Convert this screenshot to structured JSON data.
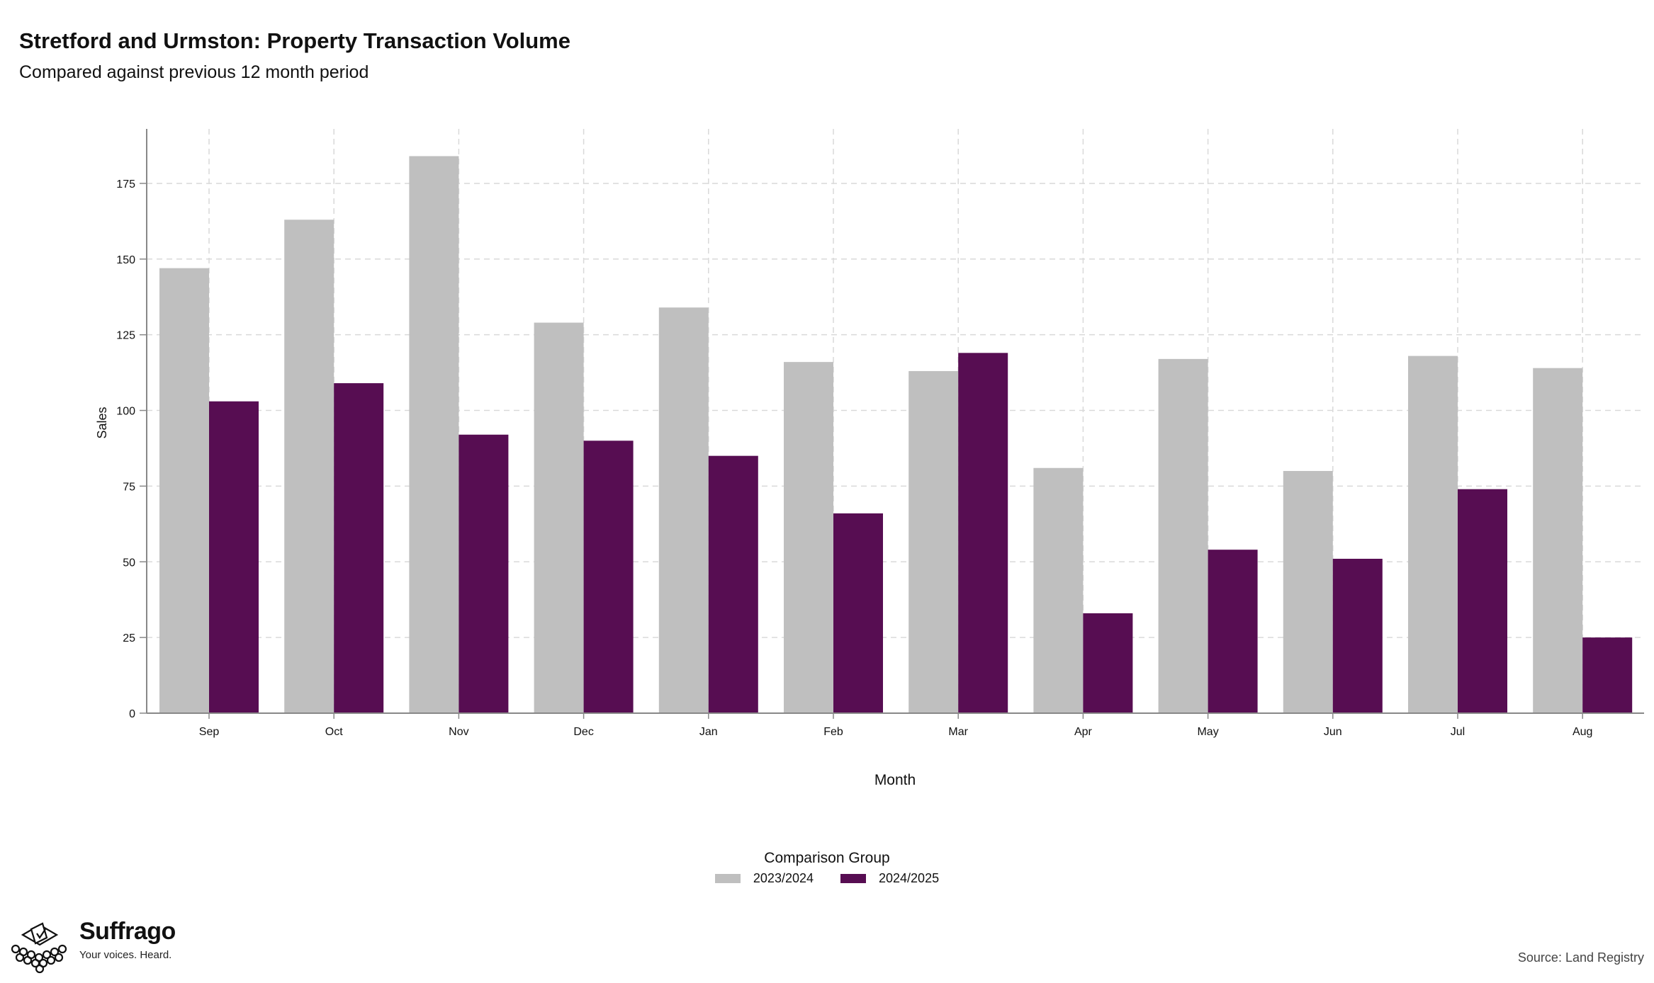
{
  "header": {
    "title": "Stretford and Urmston: Property Transaction Volume",
    "subtitle": "Compared against previous 12 month period"
  },
  "chart_data": {
    "type": "bar",
    "categories": [
      "Sep",
      "Oct",
      "Nov",
      "Dec",
      "Jan",
      "Feb",
      "Mar",
      "Apr",
      "May",
      "Jun",
      "Jul",
      "Aug"
    ],
    "series": [
      {
        "name": "2023/2024",
        "color": "#bfbfbf",
        "values": [
          147,
          163,
          184,
          129,
          134,
          116,
          113,
          81,
          117,
          80,
          118,
          114
        ]
      },
      {
        "name": "2024/2025",
        "color": "#570d52",
        "values": [
          103,
          109,
          92,
          90,
          85,
          66,
          119,
          33,
          54,
          51,
          74,
          25
        ]
      }
    ],
    "title": "Stretford and Urmston: Property Transaction Volume",
    "subtitle": "Compared against previous 12 month period",
    "xlabel": "Month",
    "ylabel": "Sales",
    "ylim": [
      0,
      193
    ],
    "yticks": [
      0,
      25,
      50,
      75,
      100,
      125,
      150,
      175
    ],
    "grid": true,
    "legend_placement": "bottom"
  },
  "legend": {
    "title": "Comparison Group",
    "items": [
      "2023/2024",
      "2024/2025"
    ]
  },
  "branding": {
    "name": "Suffrago",
    "tagline": "Your voices. Heard."
  },
  "footer": {
    "source": "Source: Land Registry"
  }
}
